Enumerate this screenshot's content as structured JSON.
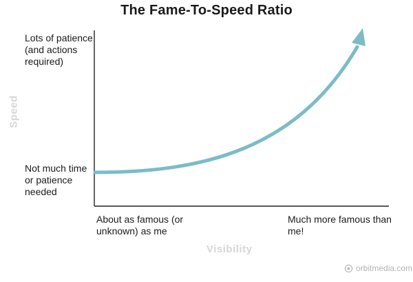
{
  "title": "The Fame-To-Speed Ratio",
  "y_axis": {
    "label": "Speed",
    "high_label": "Lots of patience (and actions required)",
    "low_label": "Not much time or patience needed"
  },
  "x_axis": {
    "label": "Visibility",
    "low_label": "About as famous (or unknown) as me",
    "high_label": "Much more famous than me!"
  },
  "watermark": "orbitmedia.com",
  "colors": {
    "curve": "#7bbcc6",
    "axis": "#222222",
    "axis_title": "#d6d6d6"
  }
}
